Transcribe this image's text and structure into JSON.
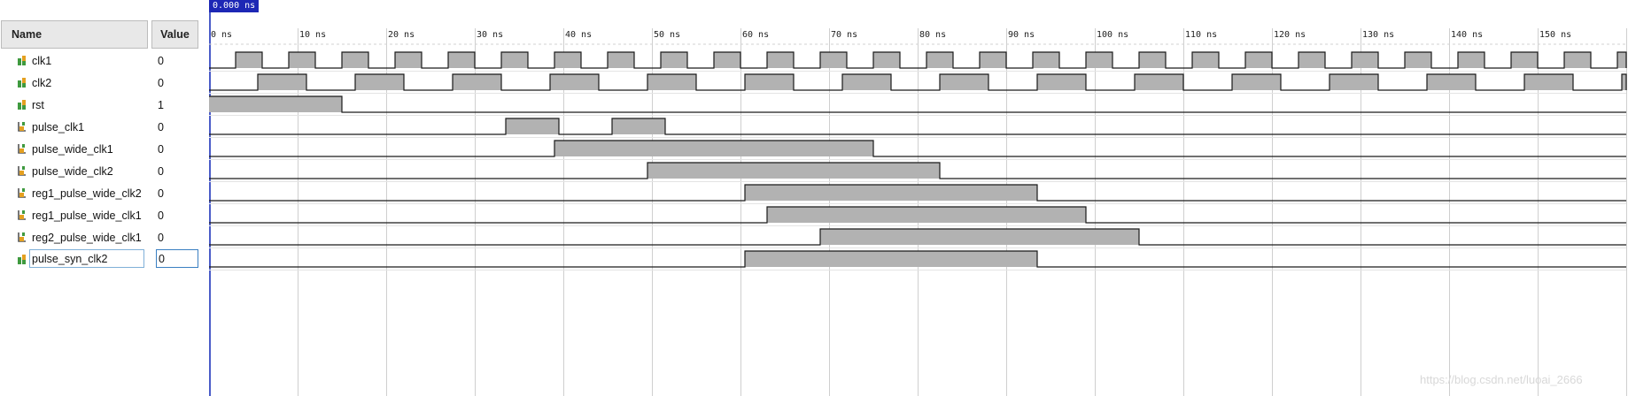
{
  "cursor_time": "0.000 ns",
  "columns": {
    "name": "Name",
    "value": "Value"
  },
  "time_scale": {
    "max_ns": 160,
    "tick_step_ns": 10,
    "unit": "ns"
  },
  "ticks": [
    "0 ns",
    "10 ns",
    "20 ns",
    "30 ns",
    "40 ns",
    "50 ns",
    "60 ns",
    "70 ns",
    "80 ns",
    "90 ns",
    "100 ns",
    "110 ns",
    "120 ns",
    "130 ns",
    "140 ns",
    "150 ns"
  ],
  "signals": [
    {
      "name": "clk1",
      "value": "0",
      "icon": "bit-signal-icon",
      "wave": {
        "kind": "clock",
        "first_rise_ns": 3,
        "high_ns": 3,
        "period_ns": 6
      }
    },
    {
      "name": "clk2",
      "value": "0",
      "icon": "bit-signal-icon",
      "wave": {
        "kind": "clock",
        "first_rise_ns": 5.5,
        "high_ns": 5.5,
        "period_ns": 11
      }
    },
    {
      "name": "rst",
      "value": "1",
      "icon": "bit-signal-icon",
      "wave": {
        "kind": "pulses",
        "high": [
          [
            0,
            15
          ]
        ]
      }
    },
    {
      "name": "pulse_clk1",
      "value": "0",
      "icon": "register-icon",
      "wave": {
        "kind": "pulses",
        "high": [
          [
            33.5,
            39.5
          ],
          [
            45.5,
            51.5
          ]
        ]
      }
    },
    {
      "name": "pulse_wide_clk1",
      "value": "0",
      "icon": "register-icon",
      "wave": {
        "kind": "pulses",
        "high": [
          [
            39,
            75
          ]
        ]
      }
    },
    {
      "name": "pulse_wide_clk2",
      "value": "0",
      "icon": "register-icon",
      "wave": {
        "kind": "pulses",
        "high": [
          [
            49.5,
            82.5
          ]
        ]
      }
    },
    {
      "name": "reg1_pulse_wide_clk2",
      "value": "0",
      "icon": "register-icon",
      "wave": {
        "kind": "pulses",
        "high": [
          [
            60.5,
            93.5
          ]
        ]
      }
    },
    {
      "name": "reg1_pulse_wide_clk1",
      "value": "0",
      "icon": "register-icon",
      "wave": {
        "kind": "pulses",
        "high": [
          [
            63,
            99
          ]
        ]
      }
    },
    {
      "name": "reg2_pulse_wide_clk1",
      "value": "0",
      "icon": "register-icon",
      "wave": {
        "kind": "pulses",
        "high": [
          [
            69,
            105
          ]
        ]
      }
    },
    {
      "name": "pulse_syn_clk2",
      "value": "0",
      "icon": "bit-signal-icon",
      "selected": true,
      "wave": {
        "kind": "pulses",
        "high": [
          [
            60.5,
            93.5
          ]
        ]
      }
    }
  ],
  "colors": {
    "fill": "#b2b2b2",
    "stroke": "#1a1a1a",
    "grid": "#cfcfcf",
    "cursor": "#1d27b5"
  },
  "watermark": "https://blog.csdn.net/luoai_2666"
}
